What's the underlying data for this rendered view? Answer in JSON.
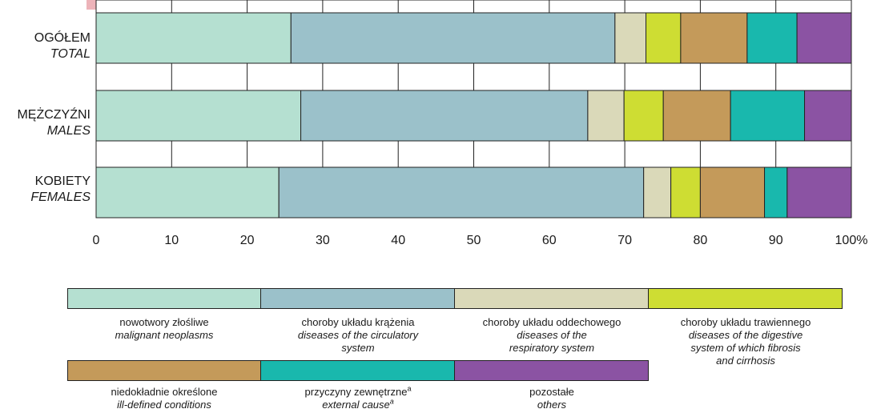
{
  "chart_data": {
    "type": "bar",
    "orientation": "horizontal",
    "stacked": true,
    "categories": [
      {
        "label_pl": "OGÓŁEM",
        "label_en": "TOTAL"
      },
      {
        "label_pl": "MĘŻCZYŹNI",
        "label_en": "MALES"
      },
      {
        "label_pl": "KOBIETY",
        "label_en": "FEMALES"
      }
    ],
    "series": [
      {
        "name": "nowotwory złośliwe",
        "name_en": "malignant neoplasms",
        "color": "#b5e0d1",
        "values": [
          25.8,
          27.1,
          24.2
        ]
      },
      {
        "name": "choroby układu krążenia",
        "name_en": "diseases of the circulatory system",
        "color": "#9bc1ca",
        "values": [
          42.9,
          38.0,
          48.3
        ]
      },
      {
        "name": "choroby układu oddechowego",
        "name_en": "diseases of the respiratory system",
        "color": "#dad9b9",
        "values": [
          4.1,
          4.8,
          3.6
        ]
      },
      {
        "name": "choroby układu trawiennego",
        "name_en": "diseases of the digestive system of which fibrosis and cirrhosis",
        "color": "#cedd33",
        "values": [
          4.6,
          5.2,
          3.9
        ]
      },
      {
        "name": "niedokładnie określone",
        "name_en": "ill-defined conditions",
        "color": "#c49a5a",
        "values": [
          8.8,
          8.9,
          8.5
        ]
      },
      {
        "name": "przyczyny zewnętrzne",
        "name_en": "external cause",
        "color": "#19b8ad",
        "values": [
          6.6,
          9.8,
          3.0
        ]
      },
      {
        "name": "pozostałe",
        "name_en": "others",
        "color": "#8b53a3",
        "values": [
          7.2,
          6.2,
          8.5
        ]
      }
    ],
    "xlim": [
      0,
      100
    ],
    "xticks": [
      "0",
      "10",
      "20",
      "30",
      "40",
      "50",
      "60",
      "70",
      "80",
      "90",
      "100%"
    ],
    "grid": true,
    "legend_position": "bottom"
  },
  "legend": {
    "row1": [
      {
        "pl": "nowotwory złośliwe",
        "en_lines": [
          "malignant neoplasms"
        ],
        "color": "#b5e0d1"
      },
      {
        "pl": "choroby układu krążenia",
        "en_lines": [
          "diseases of the circulatory",
          "system"
        ],
        "color": "#9bc1ca"
      },
      {
        "pl": "choroby układu oddechowego",
        "en_lines": [
          "diseases of the",
          "respiratory system"
        ],
        "color": "#dad9b9"
      },
      {
        "pl": "choroby układu trawiennego",
        "en_lines": [
          "diseases of the digestive",
          "system of which fibrosis",
          "and cirrhosis"
        ],
        "color": "#cedd33"
      }
    ],
    "row2": [
      {
        "pl": "niedokładnie określone",
        "en_lines": [
          "ill-defined conditions"
        ],
        "color": "#c49a5a"
      },
      {
        "pl": "przyczyny zewnętrzne",
        "en_lines": [
          "external cause"
        ],
        "color": "#19b8ad",
        "sup": "a"
      },
      {
        "pl": "pozostałe",
        "en_lines": [
          "others"
        ],
        "color": "#8b53a3"
      }
    ]
  },
  "watermark_color": "#e8a0a8"
}
